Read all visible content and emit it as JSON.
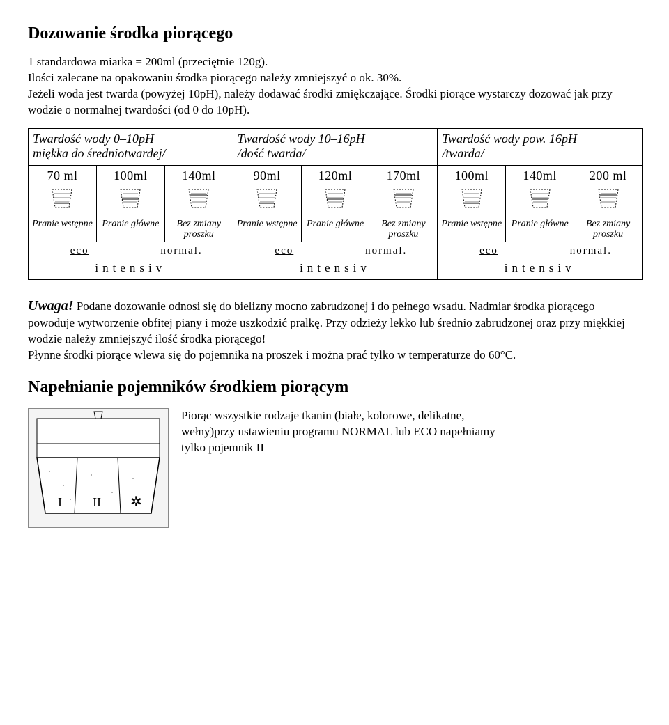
{
  "title1": "Dozowanie środka piorącego",
  "para1": "1 standardowa miarka = 200ml (przeciętnie 120g).\nIlości zalecane na opakowaniu środka piorącego należy zmniejszyć o ok. 30%.\nJeżeli woda jest twarda (powyżej 10pH), należy dodawać środki zmiękczające. Środki piorące wystarczy dozować jak przy wodzie o normalnej twardości (od 0 do 10pH).",
  "table": {
    "headers": [
      "Twardość wody 0–10pH\nmiękka do średniotwardej/",
      "Twardość wody 10–16pH\n/dość twarda/",
      "Twardość wody pow. 16pH\n/twarda/"
    ],
    "volumes": [
      "70 ml",
      "100ml",
      "140ml",
      "90ml",
      "120ml",
      "170ml",
      "100ml",
      "140ml",
      "200 ml"
    ],
    "labels": [
      "Pranie wstępne",
      "Pranie główne",
      "Bez zmiany proszku",
      "Pranie wstępne",
      "Pranie główne",
      "Bez zmiany proszku",
      "Pranie wstępne",
      "Pranie główne",
      "Bez zmiany proszku"
    ],
    "modes": {
      "eco": "eco",
      "normal": "normal.",
      "intensiv": "intensiv"
    }
  },
  "uwaga_label": "Uwaga!",
  "uwaga_text": " Podane dozowanie odnosi się do bielizny mocno zabrudzonej i do pełnego wsadu. Nadmiar środka piorącego powoduje wytworzenie obfitej piany i może uszkodzić pralkę. Przy odzieży lekko lub średnio zabrudzonej oraz przy miękkiej wodzie należy zmniejszyć ilość środka piorącego!\nPłynne środki piorące wlewa się do pojemnika na proszek i można prać tylko w temperaturze do 60°C.",
  "title2": "Napełnianie pojemników środkiem piorącym",
  "fill_text": "Piorąc wszystkie rodzaje tkanin (białe, kolorowe, delikatne, wełny)przy ustawieniu programu NORMAL lub ECO napełniamy tylko pojemnik II",
  "dispenser": {
    "labels": [
      "I",
      "II",
      "✲"
    ]
  },
  "colors": {
    "stroke": "#000000",
    "bg": "#ffffff",
    "grey": "#b0b0b0"
  }
}
